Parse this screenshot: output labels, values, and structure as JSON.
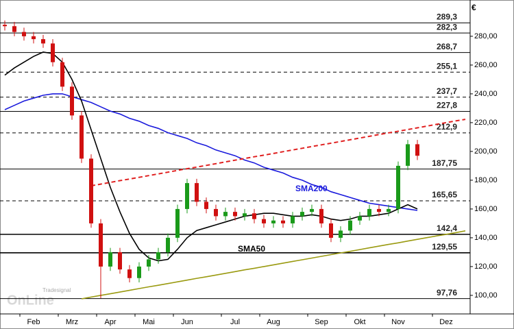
{
  "chart_data": {
    "type": "candlestick",
    "currency": "€",
    "watermark": [
      "Tradesignal",
      "OnLine"
    ],
    "categories": [
      null,
      null,
      null,
      "Feb",
      null,
      null,
      null,
      "Mrz",
      null,
      null,
      null,
      "Apr",
      null,
      null,
      null,
      "Mai",
      null,
      null,
      null,
      "Jun",
      null,
      null,
      null,
      null,
      "Jul",
      null,
      null,
      null,
      "Aug",
      null,
      null,
      null,
      null,
      "Sep",
      null,
      null,
      null,
      "Okt",
      null,
      null,
      null,
      "Nov",
      null,
      null,
      null,
      null,
      "Dez",
      null,
      null
    ],
    "open": [
      288,
      287,
      283,
      280,
      278,
      275,
      262,
      245,
      225,
      195,
      150,
      120,
      130,
      118,
      112,
      120,
      125,
      130,
      140,
      160,
      178,
      165,
      160,
      155,
      158,
      155,
      157,
      153,
      150,
      152,
      150,
      155,
      158,
      160,
      150,
      140,
      145,
      152,
      155,
      160,
      158,
      160,
      190,
      205,
      null,
      null,
      null,
      null,
      null
    ],
    "high": [
      291,
      290,
      286,
      283,
      281,
      278,
      265,
      248,
      228,
      198,
      153,
      133,
      133,
      121,
      123,
      128,
      133,
      143,
      163,
      181,
      181,
      168,
      163,
      161,
      161,
      160,
      160,
      156,
      155,
      155,
      158,
      161,
      163,
      163,
      153,
      148,
      155,
      158,
      163,
      163,
      163,
      193,
      208,
      208,
      null,
      null,
      null,
      null,
      null
    ],
    "low": [
      284,
      280,
      277,
      275,
      272,
      259,
      242,
      222,
      192,
      147,
      98,
      117,
      115,
      109,
      109,
      117,
      122,
      127,
      137,
      157,
      162,
      157,
      152,
      152,
      152,
      152,
      150,
      147,
      147,
      147,
      147,
      152,
      155,
      147,
      137,
      137,
      142,
      149,
      152,
      155,
      155,
      157,
      187,
      194,
      null,
      null,
      null,
      null,
      null
    ],
    "close": [
      287,
      283,
      280,
      278,
      275,
      262,
      245,
      225,
      195,
      150,
      120,
      130,
      118,
      112,
      120,
      125,
      130,
      140,
      160,
      178,
      165,
      160,
      155,
      158,
      155,
      157,
      153,
      150,
      152,
      150,
      155,
      158,
      160,
      150,
      140,
      145,
      152,
      155,
      160,
      158,
      160,
      190,
      205,
      197,
      null,
      null,
      null,
      null,
      null
    ],
    "up_color": "#1a9a1a",
    "down_color": "#d01010",
    "series": [
      {
        "name": "SMA200",
        "color": "#1a1adc",
        "label_at": 31,
        "values": [
          229,
          232,
          235,
          237,
          239,
          240,
          240,
          238,
          236,
          234,
          231,
          228,
          226,
          223,
          221,
          218,
          216,
          213,
          211,
          209,
          206,
          204,
          201,
          199,
          197,
          194,
          192,
          189,
          187,
          185,
          182,
          180,
          177,
          175,
          172,
          170,
          168,
          166,
          164,
          163,
          162,
          161,
          160,
          159,
          null,
          null,
          null,
          null,
          null
        ]
      },
      {
        "name": "SMA50",
        "color": "#000000",
        "label_at": 25,
        "values": [
          253,
          258,
          262,
          266,
          269,
          268,
          262,
          250,
          235,
          215,
          195,
          175,
          158,
          143,
          132,
          126,
          124,
          125,
          132,
          140,
          145,
          147,
          149,
          151,
          153,
          155,
          156,
          157,
          157,
          156,
          155,
          155,
          156,
          155,
          153,
          152,
          153,
          155,
          155,
          156,
          157,
          160,
          163,
          160,
          null,
          null,
          null,
          null,
          null
        ]
      },
      {
        "color": "#e02020",
        "dashed": true,
        "values": [
          null,
          null,
          null,
          null,
          null,
          null,
          null,
          null,
          null,
          176.1,
          177.3,
          178.5,
          179.7,
          180.8,
          182.0,
          183.2,
          184.4,
          185.6,
          186.8,
          188.0,
          189.1,
          190.3,
          191.5,
          192.7,
          193.9,
          195.1,
          196.3,
          197.4,
          198.6,
          199.8,
          201.0,
          202.2,
          203.4,
          204.6,
          205.7,
          206.9,
          208.1,
          209.3,
          210.5,
          211.7,
          212.9,
          214.0,
          215.2,
          216.4,
          217.6,
          218.8,
          220.0,
          221.2,
          222.3
        ]
      },
      {
        "color": "#9a9a10",
        "dashed": false,
        "values": [
          null,
          null,
          null,
          null,
          null,
          null,
          null,
          null,
          97.6,
          98.8,
          100.0,
          101.1,
          102.3,
          103.5,
          104.7,
          105.9,
          107.0,
          108.2,
          109.4,
          110.6,
          111.8,
          112.9,
          114.1,
          115.3,
          116.5,
          117.7,
          118.8,
          120.0,
          121.2,
          122.4,
          123.6,
          124.7,
          125.9,
          127.1,
          128.3,
          129.5,
          130.6,
          131.8,
          133.0,
          134.2,
          135.4,
          136.5,
          137.7,
          138.9,
          140.1,
          141.3,
          142.4,
          143.6,
          144.8
        ]
      }
    ],
    "levels": [
      {
        "value": 289.3,
        "label": "289,3",
        "dashed": false
      },
      {
        "value": 282.3,
        "label": "282,3",
        "dashed": false
      },
      {
        "value": 268.7,
        "label": "268,7",
        "dashed": false
      },
      {
        "value": 255.1,
        "label": "255,1",
        "dashed": true
      },
      {
        "value": 237.7,
        "label": "237,7",
        "dashed": true
      },
      {
        "value": 227.8,
        "label": "227,8",
        "dashed": false
      },
      {
        "value": 212.9,
        "label": "212,9",
        "dashed": true
      },
      {
        "value": 187.75,
        "label": "187,75",
        "dashed": false
      },
      {
        "value": 165.65,
        "label": "165,65",
        "dashed": true
      },
      {
        "value": 142.4,
        "label": "142,4",
        "dashed": false
      },
      {
        "value": 129.55,
        "label": "129,55",
        "dashed": false
      },
      {
        "value": 97.76,
        "label": "97,76",
        "dashed": false
      }
    ],
    "ylim": [
      87.1,
      305.2
    ],
    "yticks": [
      {
        "value": 100,
        "label": "100,00"
      },
      {
        "value": 120,
        "label": "120,00"
      },
      {
        "value": 140,
        "label": "140,00"
      },
      {
        "value": 160,
        "label": "160,00"
      },
      {
        "value": 180,
        "label": "180,00"
      },
      {
        "value": 200,
        "label": "200,00"
      },
      {
        "value": 220,
        "label": "220,00"
      },
      {
        "value": 240,
        "label": "240,00"
      },
      {
        "value": 260,
        "label": "260,00"
      },
      {
        "value": 280,
        "label": "280,00"
      }
    ]
  }
}
